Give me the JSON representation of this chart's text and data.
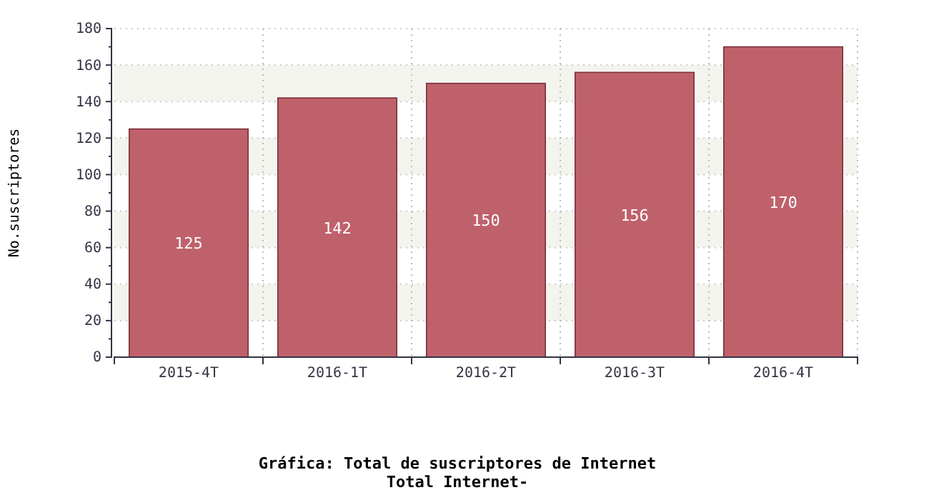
{
  "chart_data": {
    "type": "bar",
    "title": "Gráfica: Total de suscriptores de Internet",
    "subtitle": "Total Internet-",
    "ylabel": "No.suscriptores",
    "categories": [
      "2015-4T",
      "2016-1T",
      "2016-2T",
      "2016-3T",
      "2016-4T"
    ],
    "values": [
      125,
      142,
      150,
      156,
      170
    ],
    "color": "#bf616b",
    "ylim": [
      0,
      180
    ],
    "yticks": [
      0,
      20,
      40,
      60,
      80,
      100,
      120,
      140,
      160,
      180
    ],
    "grid": true,
    "data_labels": true
  }
}
